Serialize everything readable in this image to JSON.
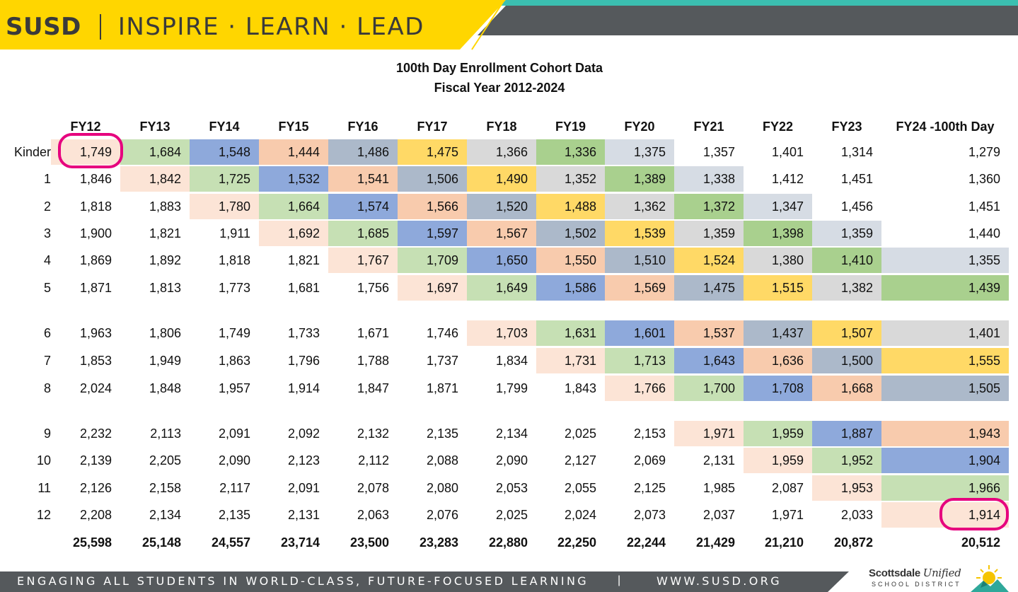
{
  "header": {
    "logo": "SUSD",
    "tagline": "INSPIRE · LEARN · LEAD"
  },
  "title": {
    "line1": "100th Day Enrollment Cohort Data",
    "line2": "Fiscal Year 2012-2024"
  },
  "table": {
    "columns": [
      "FY12",
      "FY13",
      "FY14",
      "FY15",
      "FY16",
      "FY17",
      "FY18",
      "FY19",
      "FY20",
      "FY21",
      "FY22",
      "FY23",
      "FY24 -100th Day"
    ],
    "rows": [
      {
        "label": "Kinder",
        "values": [
          "1,749",
          "1,684",
          "1,548",
          "1,444",
          "1,486",
          "1,475",
          "1,366",
          "1,336",
          "1,375",
          "1,357",
          "1,401",
          "1,314",
          "1,279"
        ]
      },
      {
        "label": "1",
        "values": [
          "1,846",
          "1,842",
          "1,725",
          "1,532",
          "1,541",
          "1,506",
          "1,490",
          "1,352",
          "1,389",
          "1,338",
          "1,412",
          "1,451",
          "1,360"
        ]
      },
      {
        "label": "2",
        "values": [
          "1,818",
          "1,883",
          "1,780",
          "1,664",
          "1,574",
          "1,566",
          "1,520",
          "1,488",
          "1,362",
          "1,372",
          "1,347",
          "1,456",
          "1,451"
        ]
      },
      {
        "label": "3",
        "values": [
          "1,900",
          "1,821",
          "1,911",
          "1,692",
          "1,685",
          "1,597",
          "1,567",
          "1,502",
          "1,539",
          "1,359",
          "1,398",
          "1,359",
          "1,440"
        ]
      },
      {
        "label": "4",
        "values": [
          "1,869",
          "1,892",
          "1,818",
          "1,821",
          "1,767",
          "1,709",
          "1,650",
          "1,550",
          "1,510",
          "1,524",
          "1,380",
          "1,410",
          "1,355"
        ]
      },
      {
        "label": "5",
        "values": [
          "1,871",
          "1,813",
          "1,773",
          "1,681",
          "1,756",
          "1,697",
          "1,649",
          "1,586",
          "1,569",
          "1,475",
          "1,515",
          "1,382",
          "1,439"
        ]
      },
      {
        "label": "6",
        "values": [
          "1,963",
          "1,806",
          "1,749",
          "1,733",
          "1,671",
          "1,746",
          "1,703",
          "1,631",
          "1,601",
          "1,537",
          "1,437",
          "1,507",
          "1,401"
        ]
      },
      {
        "label": "7",
        "values": [
          "1,853",
          "1,949",
          "1,863",
          "1,796",
          "1,788",
          "1,737",
          "1,834",
          "1,731",
          "1,713",
          "1,643",
          "1,636",
          "1,500",
          "1,555"
        ]
      },
      {
        "label": "8",
        "values": [
          "2,024",
          "1,848",
          "1,957",
          "1,914",
          "1,847",
          "1,871",
          "1,799",
          "1,843",
          "1,766",
          "1,700",
          "1,708",
          "1,668",
          "1,505"
        ]
      },
      {
        "label": "9",
        "values": [
          "2,232",
          "2,113",
          "2,091",
          "2,092",
          "2,132",
          "2,135",
          "2,134",
          "2,025",
          "2,153",
          "1,971",
          "1,959",
          "1,887",
          "1,943"
        ]
      },
      {
        "label": "10",
        "values": [
          "2,139",
          "2,205",
          "2,090",
          "2,123",
          "2,112",
          "2,088",
          "2,090",
          "2,127",
          "2,069",
          "2,131",
          "1,959",
          "1,952",
          "1,904"
        ]
      },
      {
        "label": "11",
        "values": [
          "2,126",
          "2,158",
          "2,117",
          "2,091",
          "2,078",
          "2,080",
          "2,053",
          "2,055",
          "2,125",
          "1,985",
          "2,087",
          "1,953",
          "1,966"
        ]
      },
      {
        "label": "12",
        "values": [
          "2,208",
          "2,134",
          "2,135",
          "2,131",
          "2,063",
          "2,076",
          "2,025",
          "2,024",
          "2,073",
          "2,037",
          "1,971",
          "2,033",
          "1,914"
        ]
      }
    ],
    "totals": [
      "25,598",
      "25,148",
      "24,557",
      "23,714",
      "23,500",
      "23,283",
      "22,880",
      "22,250",
      "22,244",
      "21,429",
      "21,210",
      "20,872",
      "20,512"
    ],
    "cohort_colors": [
      "#FCE4D6",
      "#C6E0B4",
      "#8EA9DB",
      "#F8CBAD",
      "#ACB9CA",
      "#FFD966",
      "#D9D9D9",
      "#A9D08E",
      "#D6DCE4"
    ],
    "highlight_color": "#E6007E"
  },
  "footer": {
    "tagline": "ENGAGING ALL STUDENTS IN WORLD-CLASS, FUTURE-FOCUSED LEARNING",
    "separator": "|",
    "url": "WWW.SUSD.ORG",
    "district_name": "Scottsdale",
    "district_name_script": "Unified",
    "district_sub": "SCHOOL DISTRICT"
  }
}
